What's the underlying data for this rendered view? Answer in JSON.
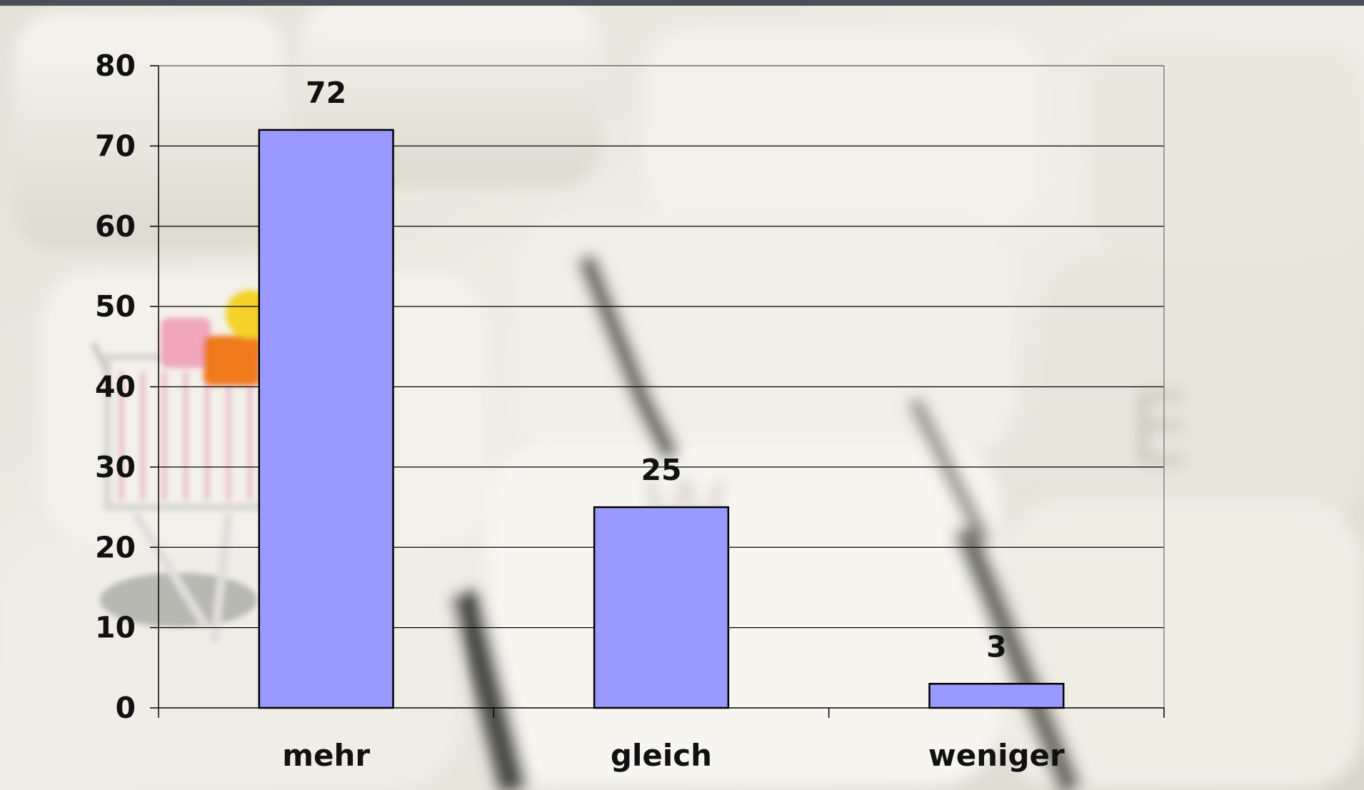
{
  "colors": {
    "bar_fill": "#9999ff",
    "bar_stroke": "#000000",
    "gridline": "#000000",
    "text": "#111111",
    "top_rule": "#4a5058",
    "background": "#ece9e0"
  },
  "background": {
    "icon": "keyboard-with-shopping-cart-photo-icon"
  },
  "chart_data": {
    "type": "bar",
    "categories": [
      "mehr",
      "gleich",
      "weniger"
    ],
    "values": [
      72,
      25,
      3
    ],
    "data_labels": [
      "72",
      "25",
      "3"
    ],
    "title": "",
    "xlabel": "",
    "ylabel": "",
    "ylim": [
      0,
      80
    ],
    "yticks": [
      0,
      10,
      20,
      30,
      40,
      50,
      60,
      70,
      80
    ],
    "grid": true,
    "legend": "none"
  }
}
